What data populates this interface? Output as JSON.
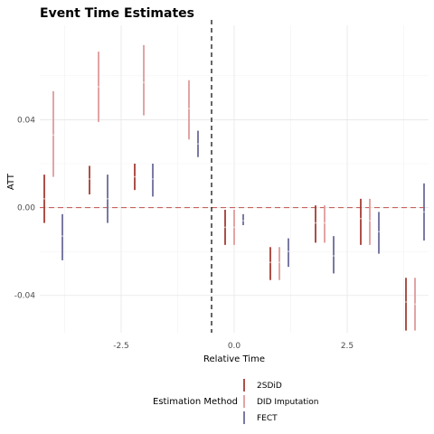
{
  "chart_data": {
    "type": "errorbar",
    "title": "Event Time Estimates",
    "xlabel": "Relative Time",
    "ylabel": "ATT",
    "x_range": [
      -4.3,
      4.3
    ],
    "y_range": [
      -0.057,
      0.083
    ],
    "x_ticks": [
      -2.5,
      0.0,
      2.5
    ],
    "x_tick_labels": [
      "-2.5",
      "0.0",
      "2.5"
    ],
    "y_ticks": [
      -0.04,
      0.0,
      0.04
    ],
    "y_tick_labels": [
      "-0.04",
      "0.00",
      "0.04"
    ],
    "grid": true,
    "event_line": -0.5,
    "reference_line": 0.0,
    "legend_title": "Estimation Method",
    "legend_position": "bottom",
    "dodge": 0.2,
    "series": [
      {
        "name": "2SDiD",
        "color": "#a33d33",
        "points": [
          {
            "x": -4,
            "estimate": 0.004,
            "low": -0.007,
            "high": 0.015
          },
          {
            "x": -3,
            "estimate": 0.013,
            "low": 0.006,
            "high": 0.019
          },
          {
            "x": -2,
            "estimate": 0.014,
            "low": 0.008,
            "high": 0.02
          },
          {
            "x": 0,
            "estimate": -0.009,
            "low": -0.017,
            "high": -0.001
          },
          {
            "x": 1,
            "estimate": -0.025,
            "low": -0.033,
            "high": -0.018
          },
          {
            "x": 2,
            "estimate": -0.007,
            "low": -0.016,
            "high": 0.001
          },
          {
            "x": 3,
            "estimate": -0.005,
            "low": -0.017,
            "high": 0.004
          },
          {
            "x": 4,
            "estimate": -0.043,
            "low": -0.056,
            "high": -0.032
          }
        ]
      },
      {
        "name": "DID Imputation",
        "color": "#e09a9a",
        "points": [
          {
            "x": -4,
            "estimate": 0.033,
            "low": 0.014,
            "high": 0.053
          },
          {
            "x": -3,
            "estimate": 0.055,
            "low": 0.039,
            "high": 0.071
          },
          {
            "x": -2,
            "estimate": 0.057,
            "low": 0.042,
            "high": 0.074
          },
          {
            "x": -1,
            "estimate": 0.045,
            "low": 0.031,
            "high": 0.058
          },
          {
            "x": 0,
            "estimate": -0.009,
            "low": -0.017,
            "high": -0.001
          },
          {
            "x": 1,
            "estimate": -0.025,
            "low": -0.033,
            "high": -0.018
          },
          {
            "x": 2,
            "estimate": -0.007,
            "low": -0.016,
            "high": 0.001
          },
          {
            "x": 3,
            "estimate": -0.006,
            "low": -0.017,
            "high": 0.004
          },
          {
            "x": 4,
            "estimate": -0.044,
            "low": -0.056,
            "high": -0.032
          }
        ]
      },
      {
        "name": "FECT",
        "color": "#6b6b9a",
        "points": [
          {
            "x": -4,
            "estimate": -0.013,
            "low": -0.024,
            "high": -0.003
          },
          {
            "x": -3,
            "estimate": 0.004,
            "low": -0.007,
            "high": 0.015
          },
          {
            "x": -2,
            "estimate": 0.013,
            "low": 0.005,
            "high": 0.02
          },
          {
            "x": -1,
            "estimate": 0.029,
            "low": 0.023,
            "high": 0.035
          },
          {
            "x": 0,
            "estimate": -0.006,
            "low": -0.008,
            "high": -0.003
          },
          {
            "x": 1,
            "estimate": -0.02,
            "low": -0.027,
            "high": -0.014
          },
          {
            "x": 2,
            "estimate": -0.022,
            "low": -0.03,
            "high": -0.013
          },
          {
            "x": 3,
            "estimate": -0.011,
            "low": -0.021,
            "high": -0.002
          },
          {
            "x": 4,
            "estimate": -0.002,
            "low": -0.015,
            "high": 0.011
          }
        ]
      }
    ]
  }
}
